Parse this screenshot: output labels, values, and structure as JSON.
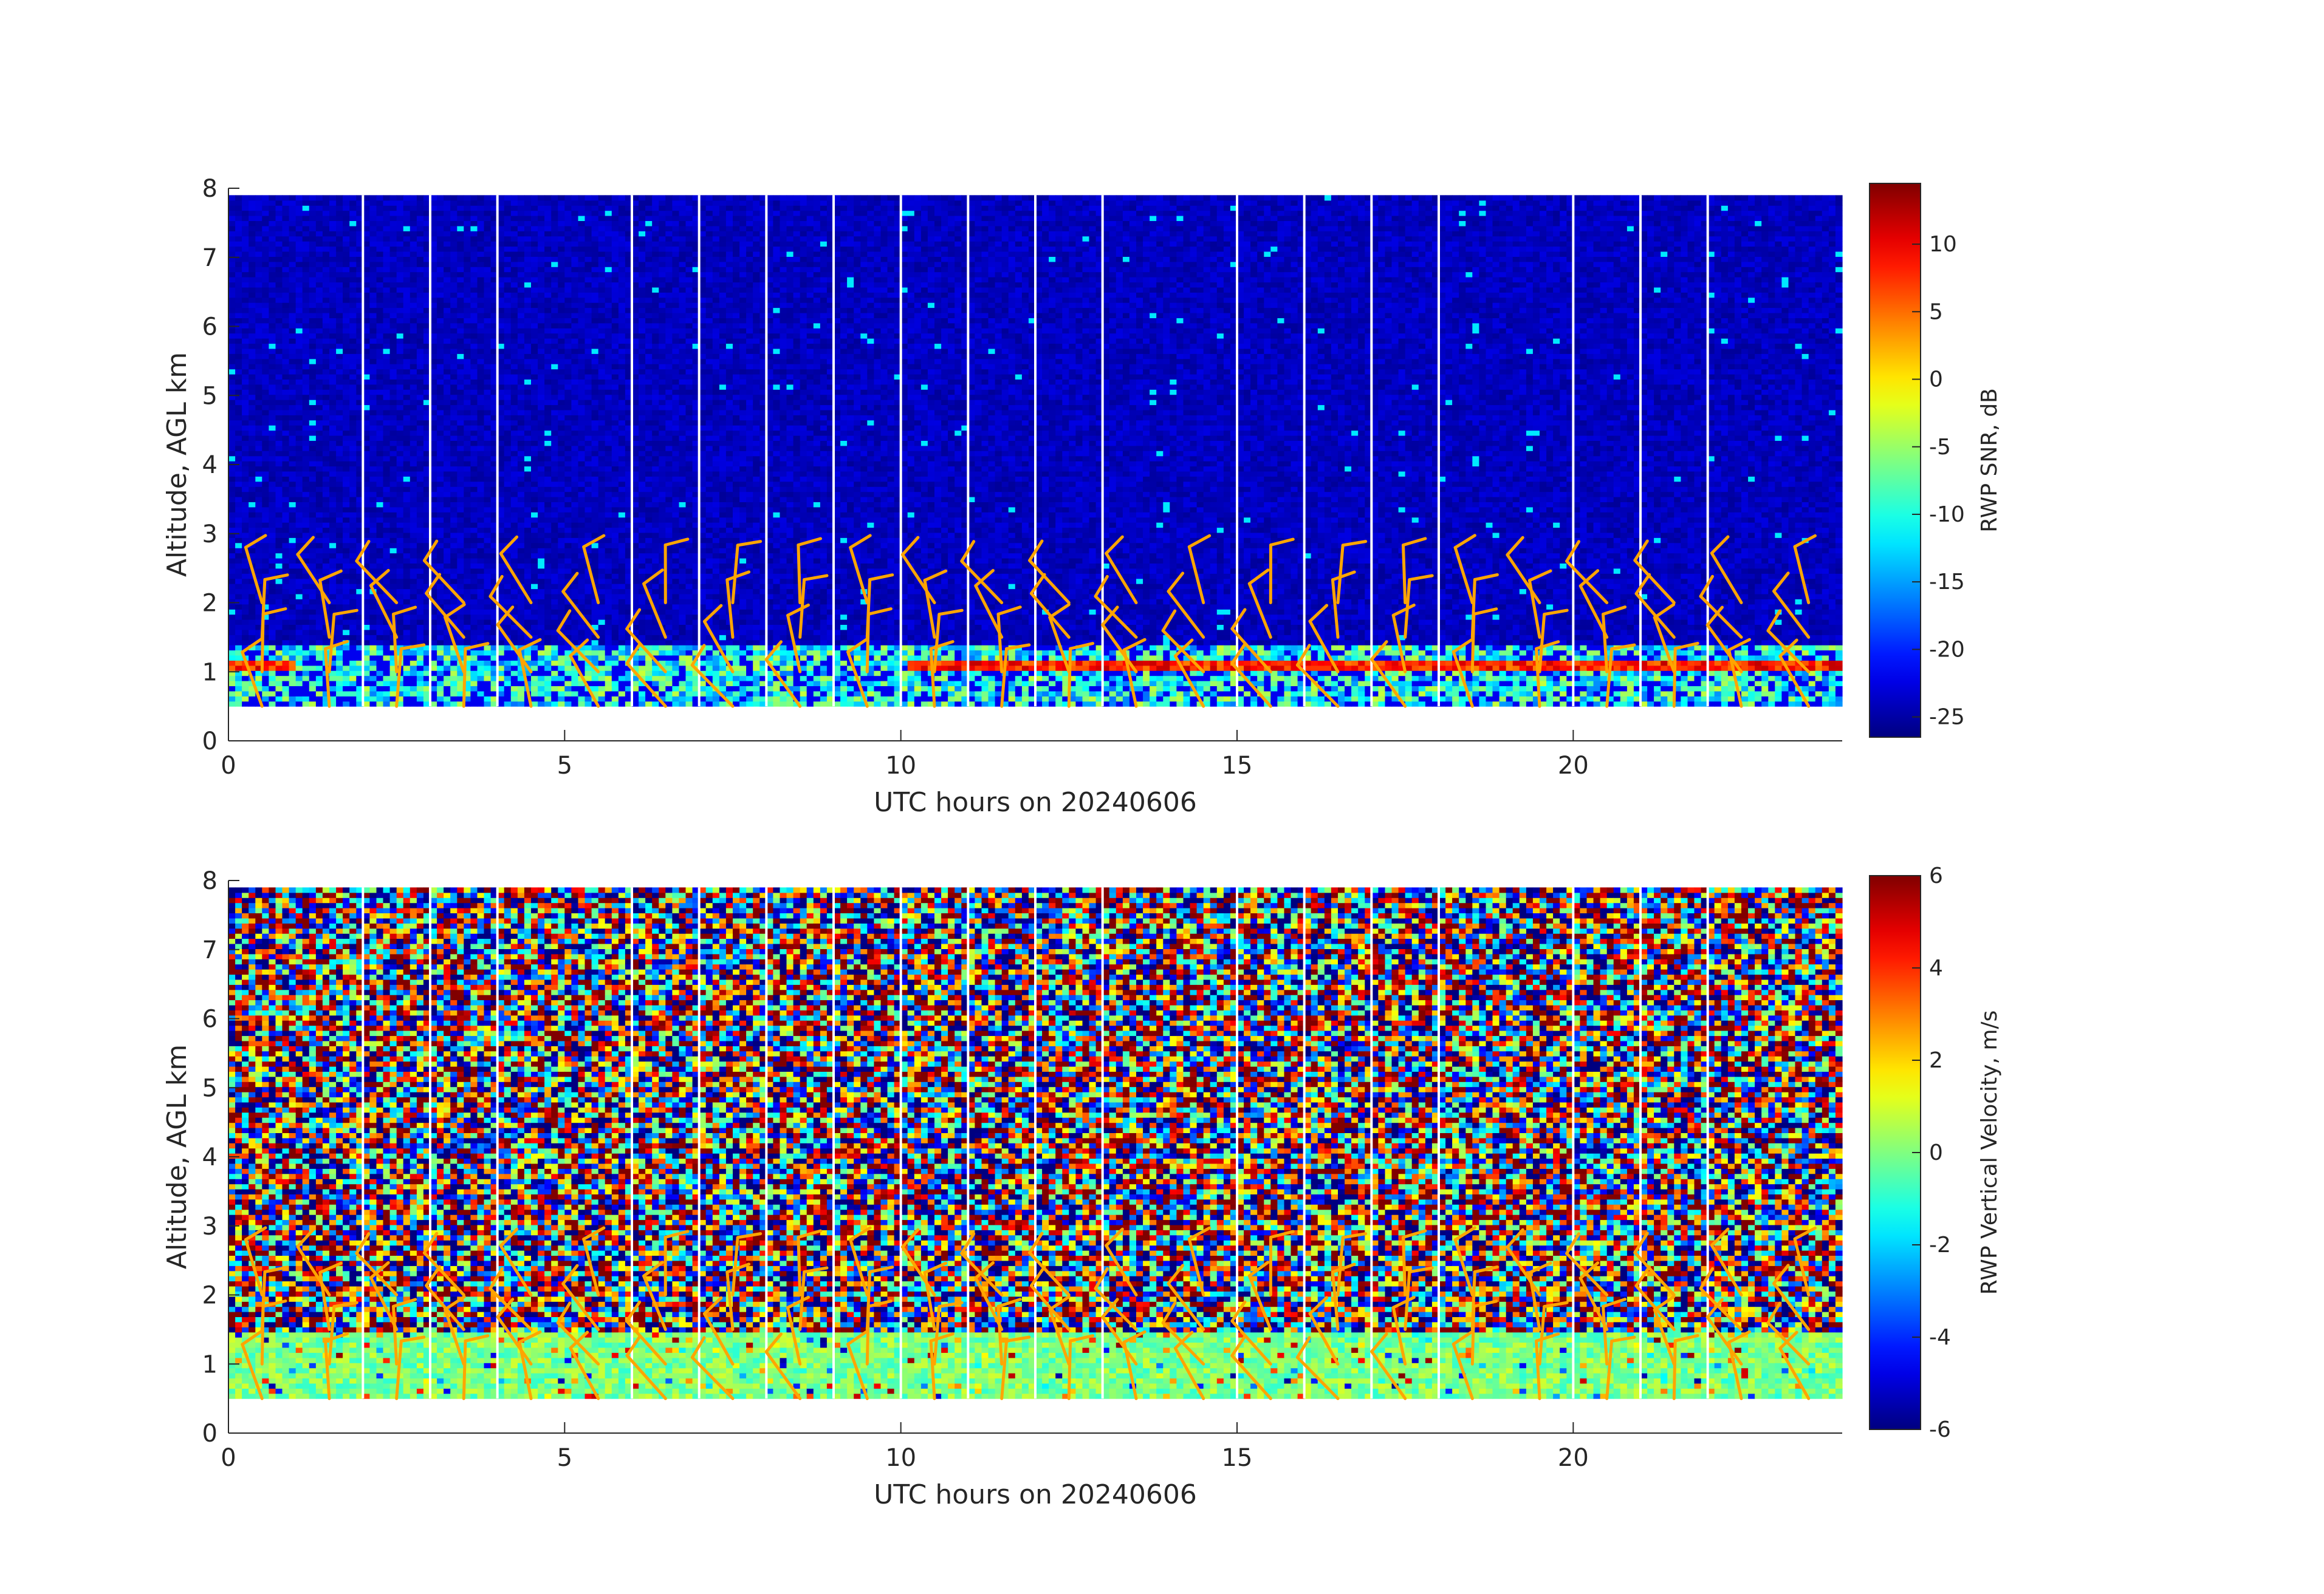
{
  "chart_data": [
    {
      "type": "heatmap",
      "name": "snr-panel",
      "xlabel": "UTC hours on 20240606",
      "ylabel": "Altitude, AGL km",
      "xlim": [
        0,
        24
      ],
      "ylim": [
        0,
        8
      ],
      "x_ticks": [
        0,
        5,
        10,
        15,
        20
      ],
      "y_ticks": [
        0,
        1,
        2,
        3,
        4,
        5,
        6,
        7,
        8
      ],
      "colormap": "jet",
      "colorbar": {
        "label": "RWP SNR, dB",
        "range": [
          -26.5,
          14.5
        ],
        "ticks": [
          -25,
          -20,
          -15,
          -10,
          -5,
          0,
          5,
          10
        ]
      },
      "valid_altitude_range_km": [
        0.5,
        7.9
      ],
      "data_gaps_hours": [
        2.0,
        3.0,
        4.0,
        6.0,
        7.0,
        8.0,
        9.0,
        10.0,
        11.0,
        12.0,
        13.0,
        15.0,
        16.0,
        17.0,
        18.0,
        20.0,
        21.0,
        22.0
      ],
      "background_value_db": -24,
      "boundary_layer": {
        "top_km": 1.35,
        "bottom_km": 0.5,
        "typical_value_db": -10,
        "strong_layer_km": 1.05,
        "strong_layer_value_db": 8
      },
      "wind_barbs": {
        "color": "#ffa500",
        "times_hours": [
          0.5,
          1.5,
          2.5,
          3.5,
          4.5,
          5.5,
          6.5,
          7.5,
          8.5,
          9.5,
          10.5,
          11.5,
          12.5,
          13.5,
          14.5,
          15.5,
          16.5,
          17.5,
          18.5,
          19.5,
          20.5,
          21.5,
          22.5,
          23.5
        ],
        "altitudes_km": [
          0.5,
          1.0,
          1.5,
          2.0
        ]
      }
    },
    {
      "type": "heatmap",
      "name": "velocity-panel",
      "xlabel": "UTC hours on 20240606",
      "ylabel": "Altitude, AGL km",
      "xlim": [
        0,
        24
      ],
      "ylim": [
        0,
        8
      ],
      "x_ticks": [
        0,
        5,
        10,
        15,
        20
      ],
      "y_ticks": [
        0,
        1,
        2,
        3,
        4,
        5,
        6,
        7,
        8
      ],
      "colormap": "jet",
      "colorbar": {
        "label": "RWP Vertical Velocity, m/s",
        "range": [
          -6,
          6
        ],
        "ticks": [
          -6,
          -4,
          -2,
          0,
          2,
          4,
          6
        ]
      },
      "valid_altitude_range_km": [
        0.5,
        7.9
      ],
      "data_gaps_hours": [
        2.0,
        3.0,
        4.0,
        6.0,
        7.0,
        8.0,
        9.0,
        10.0,
        11.0,
        12.0,
        13.0,
        15.0,
        16.0,
        17.0,
        18.0,
        20.0,
        21.0,
        22.0
      ],
      "boundary_layer": {
        "top_km": 1.4,
        "bottom_km": 0.5,
        "typical_value_ms": 0
      },
      "wind_barbs": {
        "color": "#ffa500",
        "times_hours": [
          0.5,
          1.5,
          2.5,
          3.5,
          4.5,
          5.5,
          6.5,
          7.5,
          8.5,
          9.5,
          10.5,
          11.5,
          12.5,
          13.5,
          14.5,
          15.5,
          16.5,
          17.5,
          18.5,
          19.5,
          20.5,
          21.5,
          22.5,
          23.5
        ],
        "altitudes_km": [
          0.5,
          1.0,
          1.5,
          2.0
        ]
      }
    }
  ]
}
